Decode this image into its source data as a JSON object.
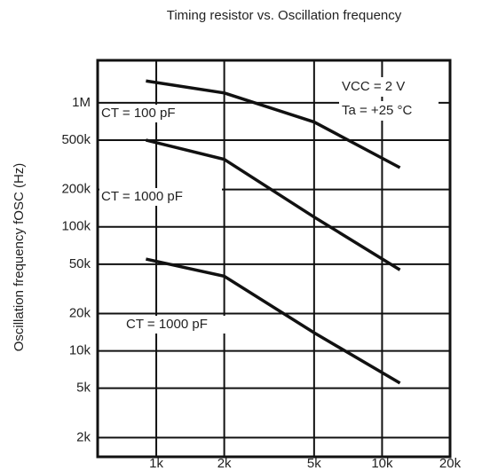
{
  "chart_data": {
    "type": "line",
    "title": "Timing resistor vs. Oscillation frequency",
    "ylabel": "Oscillation frequency fOSC (Hz)",
    "log_x": true,
    "log_y": true,
    "grid": true,
    "xlim": [
      550,
      20000
    ],
    "ylim": [
      1400,
      2200000
    ],
    "xticks": [
      {
        "value": 1000,
        "label": "1k"
      },
      {
        "value": 2000,
        "label": "2k"
      },
      {
        "value": 5000,
        "label": "5k"
      },
      {
        "value": 10000,
        "label": "10k"
      },
      {
        "value": 20000,
        "label": "20k"
      }
    ],
    "yticks": [
      {
        "value": 2000,
        "label": "2k"
      },
      {
        "value": 5000,
        "label": "5k"
      },
      {
        "value": 10000,
        "label": "10k"
      },
      {
        "value": 20000,
        "label": "20k"
      },
      {
        "value": 50000,
        "label": "50k"
      },
      {
        "value": 100000,
        "label": "100k"
      },
      {
        "value": 200000,
        "label": "200k"
      },
      {
        "value": 500000,
        "label": "500k"
      },
      {
        "value": 1000000,
        "label": "1M"
      }
    ],
    "x": [
      900,
      2000,
      5000,
      12000
    ],
    "series": [
      {
        "name": "CT = 100 pF",
        "color": "#111111",
        "values": [
          1500000,
          1200000,
          700000,
          300000
        ]
      },
      {
        "name": "CT = 1000 pF",
        "color": "#111111",
        "values": [
          500000,
          350000,
          120000,
          45000
        ]
      },
      {
        "name": "CT = 1000 pF",
        "color": "#111111",
        "values": [
          55000,
          40000,
          14000,
          5500
        ]
      }
    ],
    "annotations": [
      "VCC = 2 V",
      "Ta = +25 °C"
    ]
  }
}
